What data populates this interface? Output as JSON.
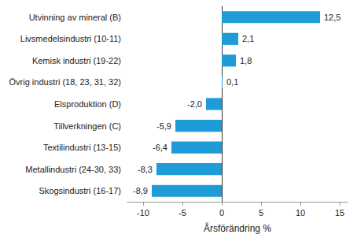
{
  "chart_data": {
    "type": "bar",
    "orientation": "horizontal",
    "categories": [
      "Utvinning av mineral (B)",
      "Livsmedelsindustri (10-11)",
      "Kemisk industri (19-22)",
      "Övrig industri (18, 23, 31, 32)",
      "Elsproduktion (D)",
      "Tillverkningen (C)",
      "Textilindustri (13-15)",
      "Metallindustri (24-30, 33)",
      "Skogsindustri (16-17)"
    ],
    "values": [
      12.5,
      2.1,
      1.8,
      0.1,
      -2.0,
      -5.9,
      -6.4,
      -8.3,
      -8.9
    ],
    "value_labels": [
      "12,5",
      "2,1",
      "1,8",
      "0,1",
      "-2,0",
      "-5,9",
      "-6,4",
      "-8,3",
      "-8,9"
    ],
    "color": "#1f9bd7",
    "x_label": "Årsförändring %",
    "xlim": [
      -12,
      16
    ],
    "xticks": [
      -10,
      -5,
      0,
      5,
      10,
      15
    ],
    "grid": false,
    "data_labels": true
  }
}
